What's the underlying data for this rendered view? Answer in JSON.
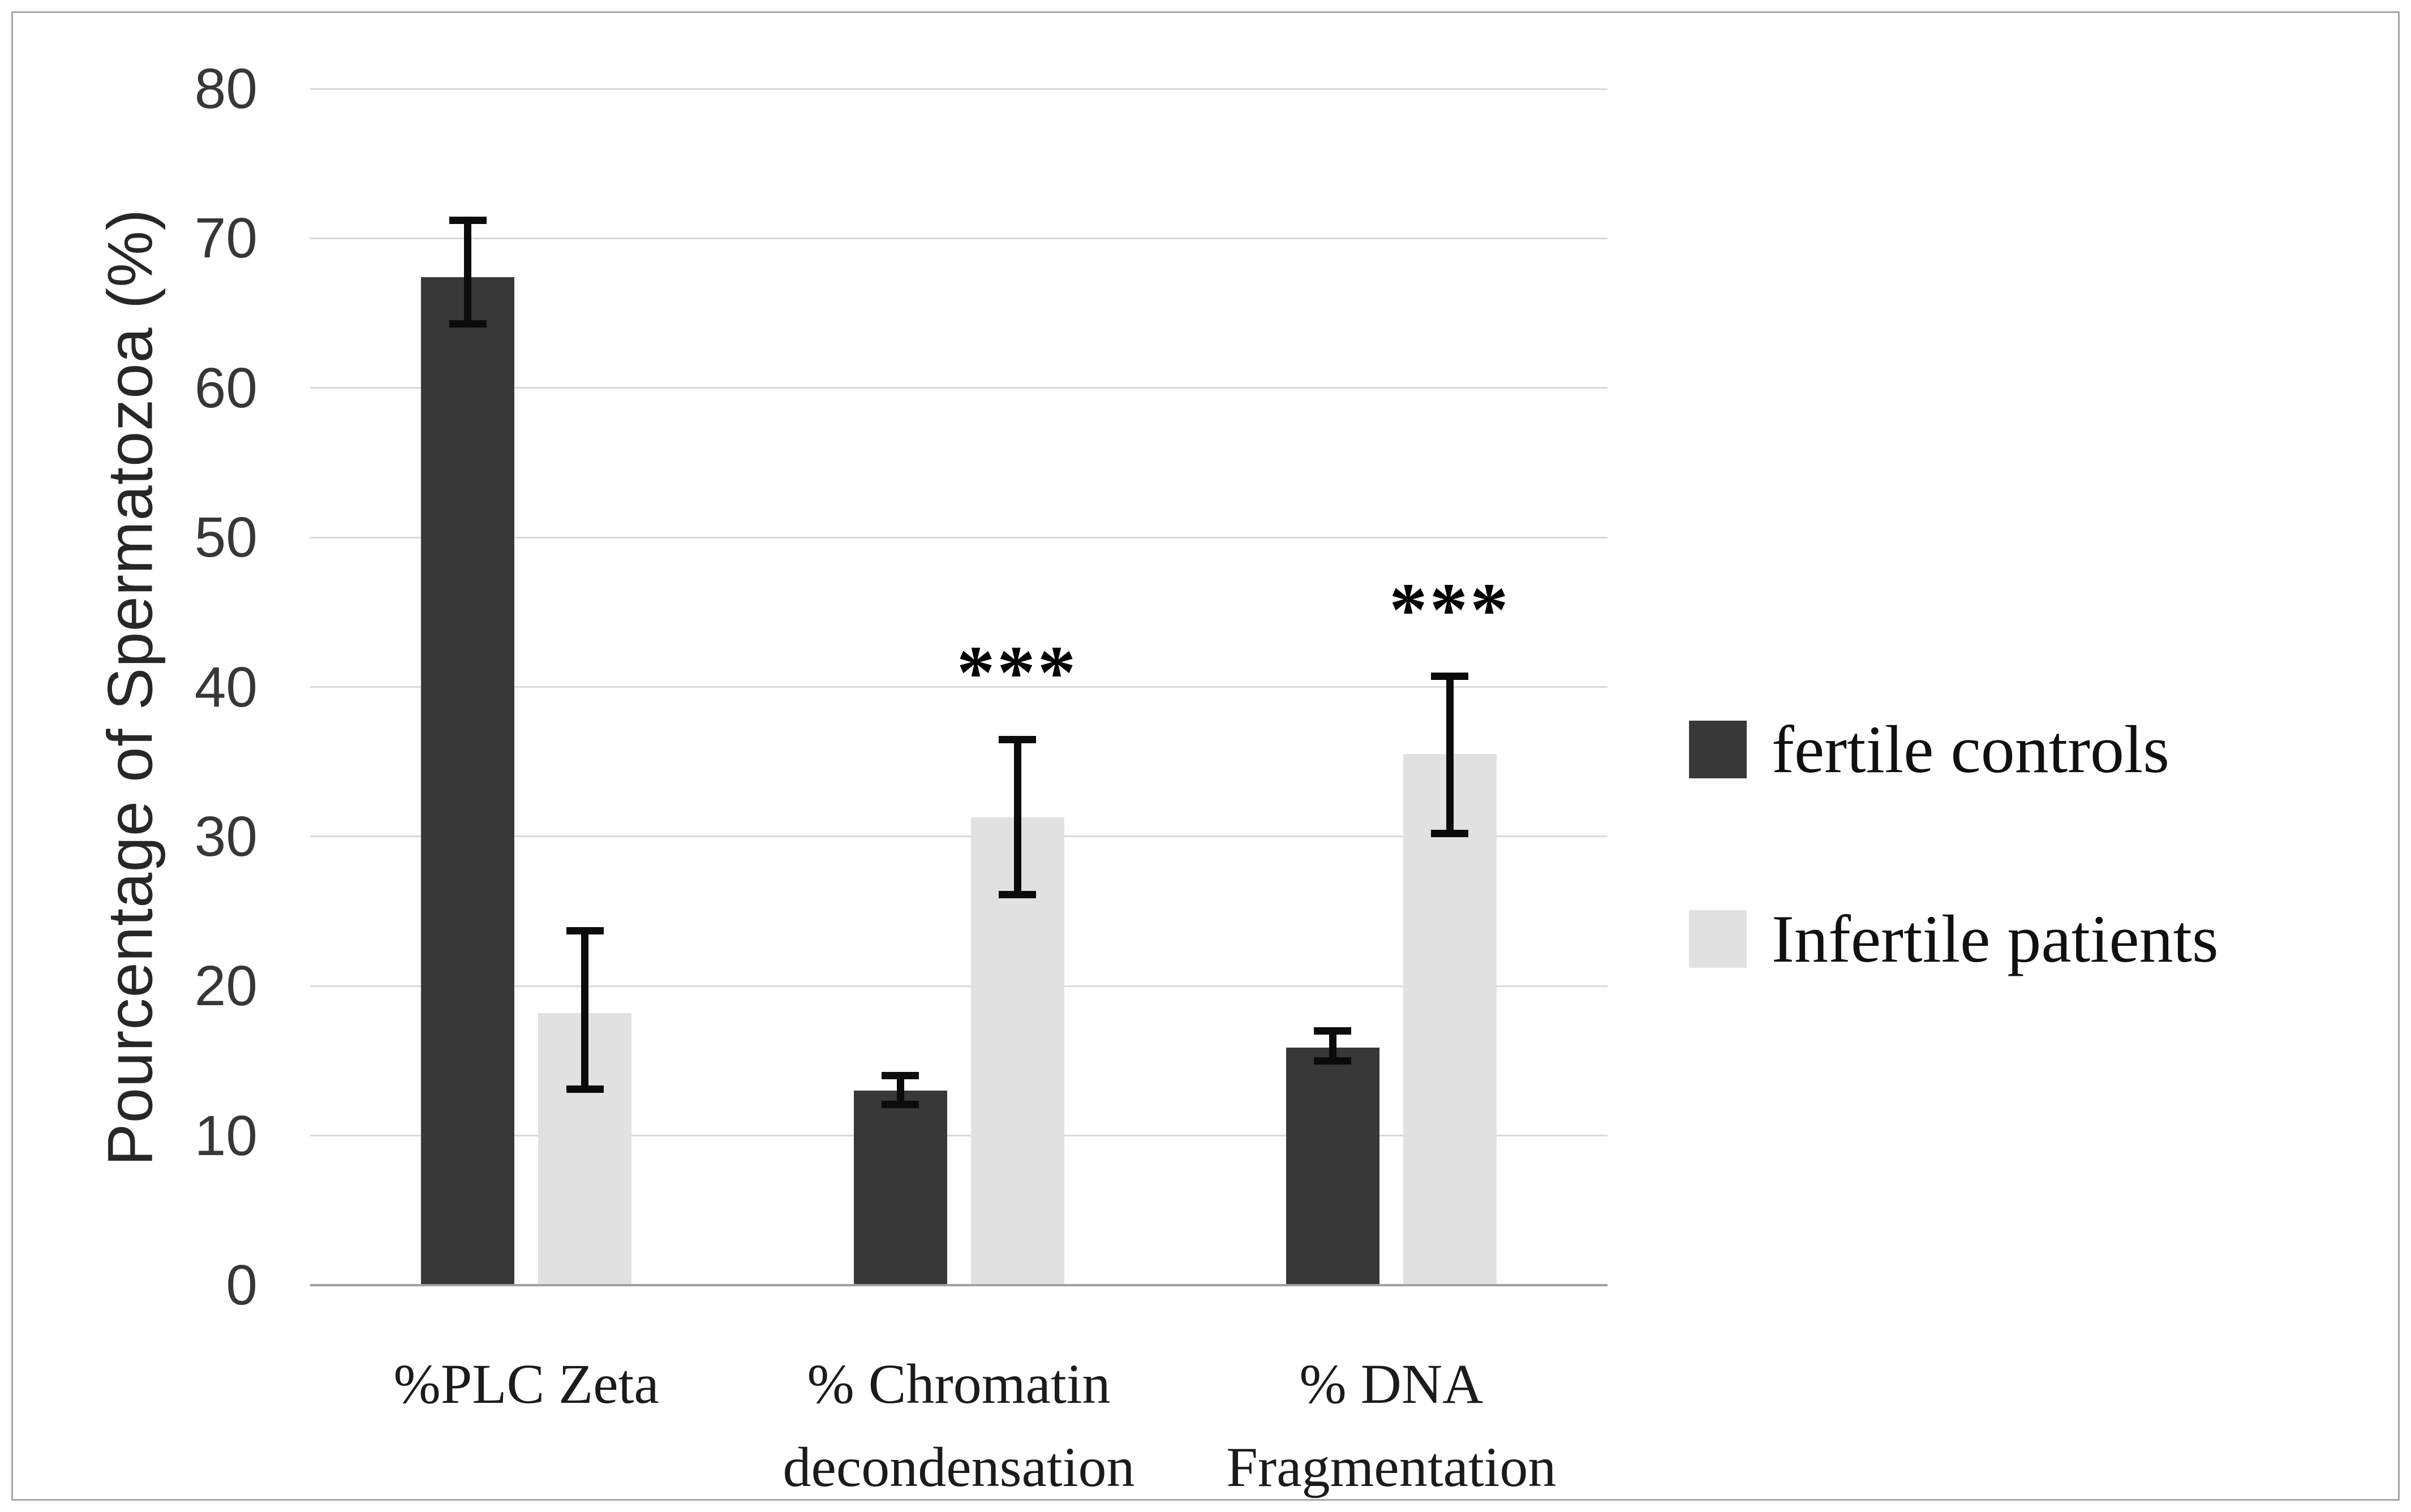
{
  "figure": {
    "background": "#ffffff",
    "border_color": "#a6a6a6",
    "gridline_color": "#d9d9d9",
    "axis_line_color": "#9f9f9f",
    "error_bar_color": "#0b0b0b"
  },
  "chart_data": {
    "type": "bar",
    "title": "",
    "ylabel": "Pourcentage of Spermatozoa (%)",
    "xlabel": "",
    "ylim": [
      0,
      80
    ],
    "ytick_step": 10,
    "grid": true,
    "legend_position": "right",
    "categories": [
      "%PLC Zeta",
      "% Chromatin\ndecondensation",
      "% DNA\nFragmentation"
    ],
    "series": [
      {
        "name": "fertile controls",
        "color": "#3a3738",
        "values": [
          67.4,
          13.0,
          15.9
        ],
        "error_low": [
          64.3,
          12.1,
          15.0
        ],
        "error_high": [
          71.2,
          14.0,
          17.0
        ],
        "significance": [
          "",
          "",
          ""
        ]
      },
      {
        "name": "Infertile patients",
        "color": "#e1e1e1",
        "values": [
          18.2,
          31.3,
          35.5
        ],
        "error_low": [
          13.1,
          26.1,
          30.2
        ],
        "error_high": [
          23.7,
          36.5,
          40.7
        ],
        "significance": [
          "",
          "***",
          "***"
        ]
      }
    ]
  }
}
